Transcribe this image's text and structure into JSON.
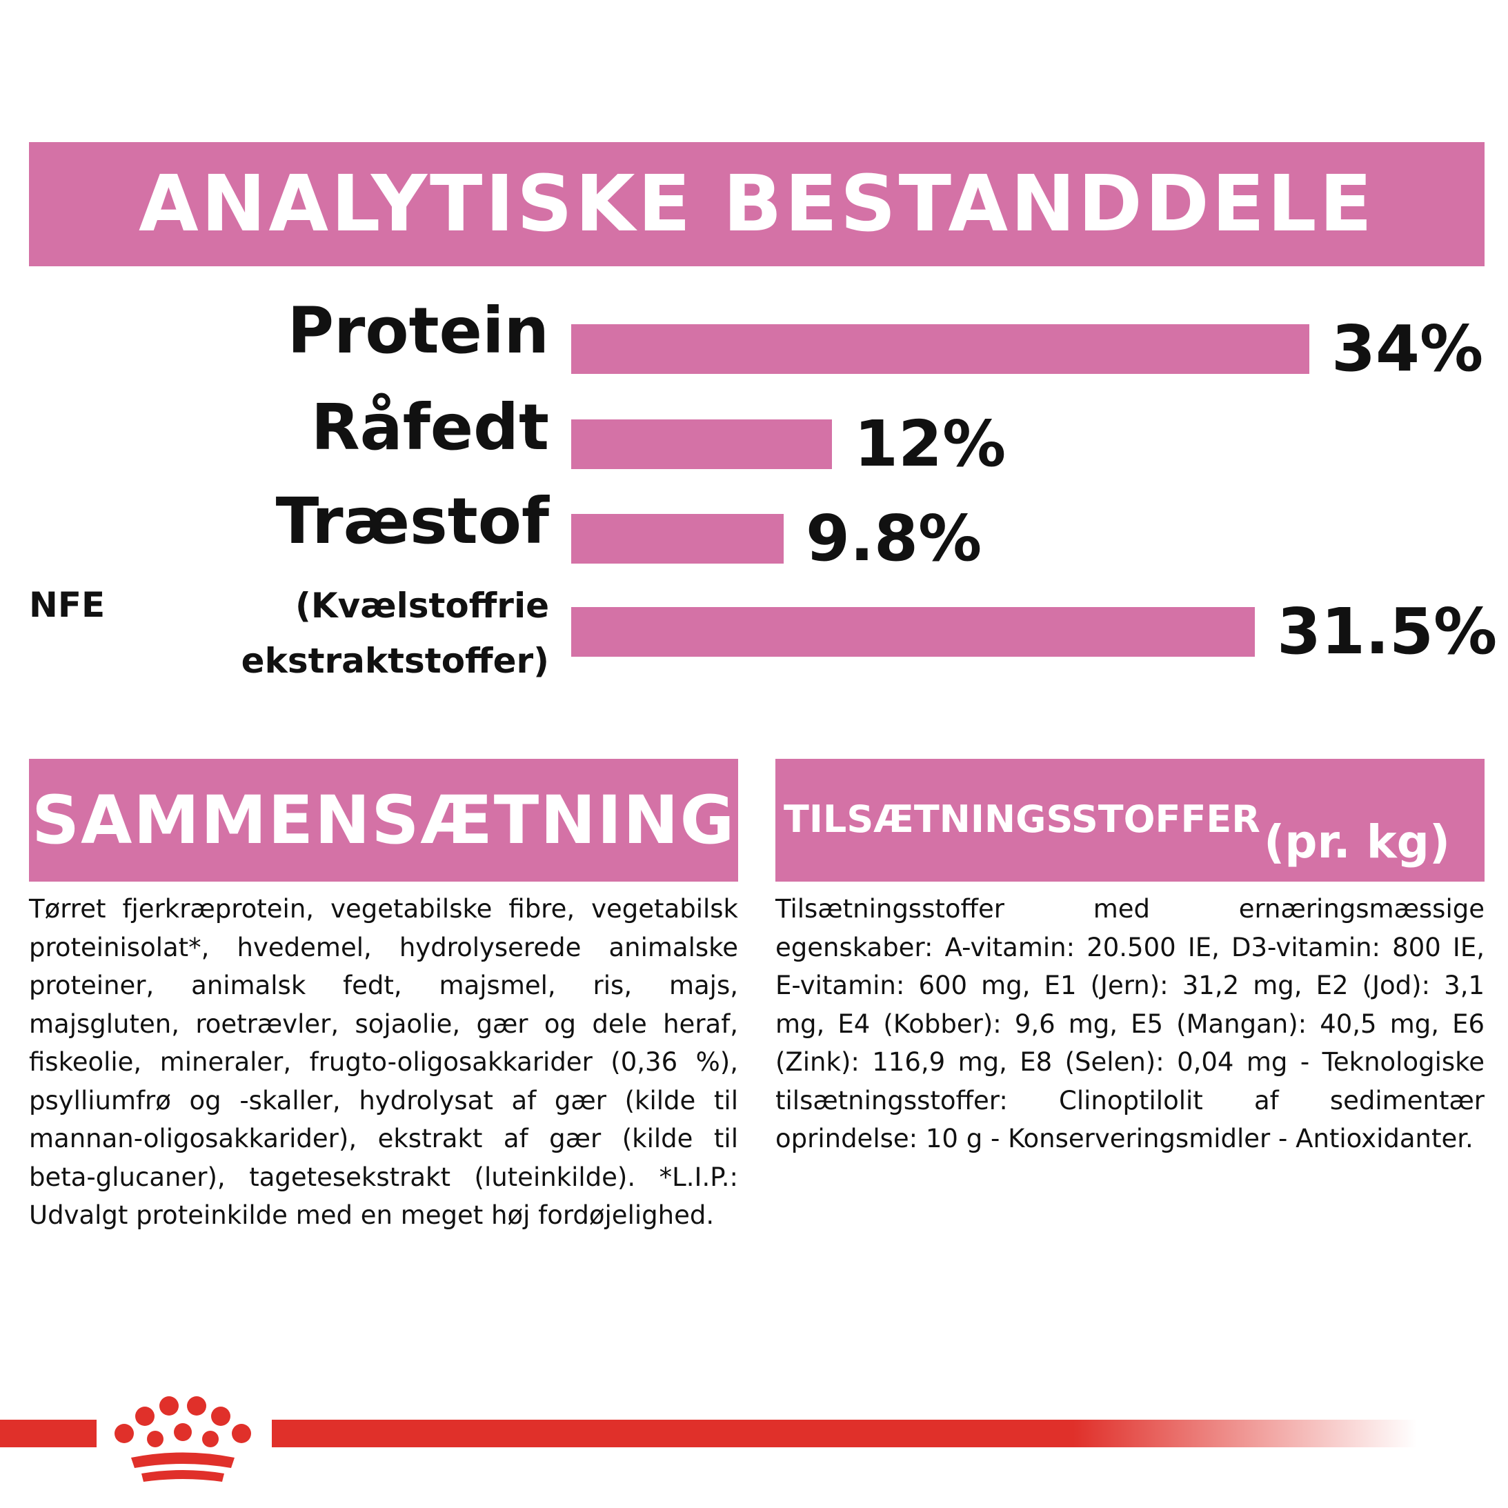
{
  "header": {
    "title": "ANALYTISKE BESTANDDELE"
  },
  "chart_data": {
    "type": "bar",
    "orientation": "horizontal",
    "categories": [
      "Protein",
      "Råfedt",
      "Træstof",
      "(Kvælstoffrie ekstraktstoffer)"
    ],
    "values": [
      34,
      12,
      9.8,
      31.5
    ],
    "value_labels": [
      "34%",
      "12%",
      "9.8%",
      "31.5%"
    ],
    "bar_color": "#d472a6",
    "nfe_prefix": "NFE",
    "nfe_label_line1": "(Kvælstoffrie",
    "nfe_label_line2": "ekstraktstoffer)"
  },
  "composition": {
    "title": "SAMMENSÆTNING",
    "text": "Tørret fjerkræprotein, vegetabilske fibre, vegetabilsk proteinisolat*, hvedemel, hydrolyserede animalske proteiner, animalsk fedt, majsmel, ris, majs, majsgluten, roetrævler, sojaolie, gær og dele heraf, fiskeolie, mineraler, frugto-oligosakkarider (0,36 %), psylliumfrø og -skaller, hydrolysat af gær (kilde til mannan-oligosakkarider), ekstrakt af gær (kilde til beta-glucaner), tagetesekstrakt (luteinkilde). *L.I.P.: Udvalgt proteinkilde med en meget høj fordøjelighed."
  },
  "additives": {
    "title": "TILSÆTNINGSSTOFFER",
    "subtitle": "(pr. kg)",
    "text": "Tilsætningsstoffer med ernæringsmæssige egenskaber: A-vitamin: 20.500 IE, D3-vitamin: 800 IE, E-vitamin: 600 mg, E1 (Jern): 31,2 mg, E2 (Jod): 3,1 mg, E4 (Kobber): 9,6 mg, E5 (Mangan): 40,5 mg, E6 (Zink): 116,9 mg, E8 (Selen): 0,04 mg - Teknologiske tilsætningsstoffer: Clinoptilolit af sedimentær oprindelse: 10 g - Konserveringsmidler - Antioxidanter."
  },
  "brand": {
    "logo": "crown-logo",
    "accent_color": "#e0302a"
  }
}
